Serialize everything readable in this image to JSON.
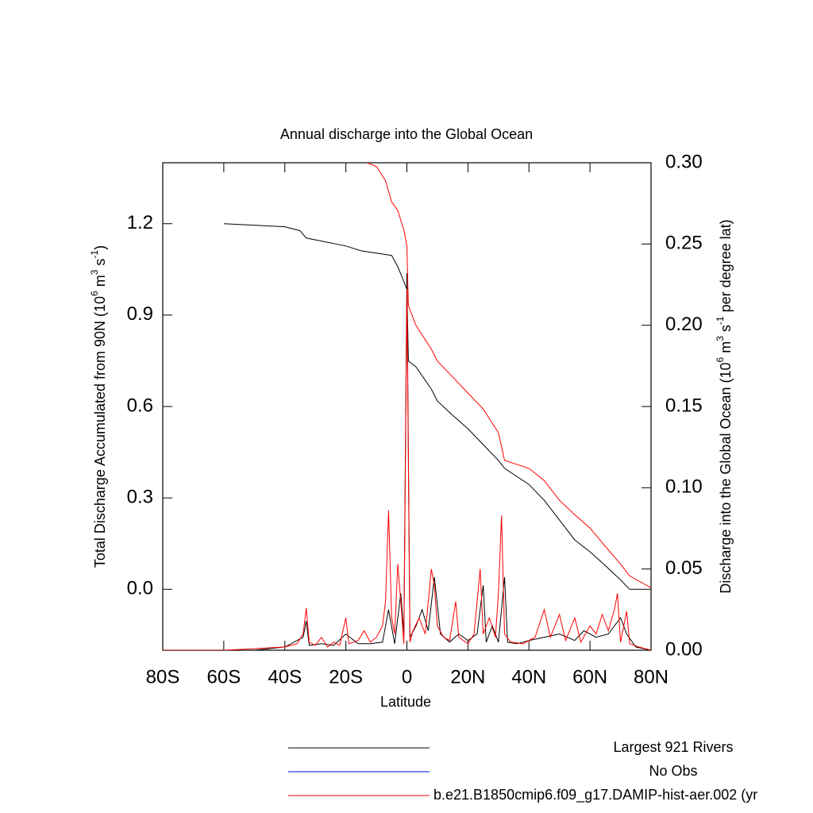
{
  "chart_data": {
    "type": "line",
    "title": "Annual discharge into the Global Ocean",
    "xlabel": "Latitude",
    "ylabel_parts": [
      "Total Discharge Accumulated from 90N (10",
      "6",
      " m",
      "3",
      " s",
      "-1",
      ")"
    ],
    "y2label_parts": [
      "Discharge into the Global Ocean (10",
      "6",
      " m",
      "3",
      " s",
      "-1",
      " per degree lat)"
    ],
    "xlim": [
      -80,
      80
    ],
    "xticks": [
      {
        "value": -80,
        "label": "80S"
      },
      {
        "value": -60,
        "label": "60S"
      },
      {
        "value": -40,
        "label": "40S"
      },
      {
        "value": -20,
        "label": "20S"
      },
      0,
      {
        "value": 20,
        "label": "20N"
      },
      {
        "value": 40,
        "label": "40N"
      },
      {
        "value": 60,
        "label": "60N"
      },
      {
        "value": 80,
        "label": "80N"
      }
    ],
    "ylim": [
      -0.2,
      1.4
    ],
    "yticks": [
      {
        "value": 0,
        "label": "0.0"
      },
      0.3,
      0.6,
      0.9,
      1.2
    ],
    "y2lim": [
      0,
      0.3
    ],
    "y2ticks": [
      {
        "value": 0,
        "label": "0.00"
      },
      {
        "value": 0.05,
        "label": "0.05"
      },
      {
        "value": 0.1,
        "label": "0.10"
      },
      {
        "value": 0.15,
        "label": "0.15"
      },
      {
        "value": 0.2,
        "label": "0.20"
      },
      {
        "value": 0.25,
        "label": "0.25"
      },
      {
        "value": 0.3,
        "label": "0.30"
      }
    ],
    "legend": [
      {
        "name": "Largest 921 Rivers",
        "color": "#000000"
      },
      {
        "name": "No Obs",
        "color": "#0000ff"
      },
      {
        "name": "b.e21.B1850cmip6.f09_g17.DAMIP-hist-aer.002 (yr",
        "color": "#ff0000"
      }
    ],
    "series": [
      {
        "color": "#000000",
        "axis": "y",
        "x": [
          -60,
          -40,
          -35,
          -33,
          -20,
          -15,
          -5,
          -3,
          -1,
          0,
          0.5,
          3,
          8,
          10,
          15,
          20,
          25,
          30,
          32,
          40,
          45,
          50,
          55,
          60,
          65,
          70,
          73,
          80
        ],
        "values": [
          1.2,
          1.19,
          1.177,
          1.153,
          1.127,
          1.111,
          1.096,
          1.059,
          1.01,
          0.984,
          0.749,
          0.73,
          0.657,
          0.618,
          0.571,
          0.527,
          0.475,
          0.423,
          0.397,
          0.344,
          0.292,
          0.227,
          0.162,
          0.123,
          0.078,
          0.031,
          0,
          0
        ]
      },
      {
        "color": "#ff0000",
        "axis": "y",
        "x": [
          -13,
          -10,
          -7,
          -5,
          -3,
          -1,
          0,
          0.5,
          3,
          8,
          10,
          15,
          20,
          25,
          28,
          30,
          32,
          40,
          45,
          50,
          55,
          60,
          65,
          70,
          73,
          80
        ],
        "values": [
          1.4,
          1.388,
          1.341,
          1.271,
          1.244,
          1.179,
          1.127,
          0.931,
          0.866,
          0.788,
          0.749,
          0.697,
          0.644,
          0.592,
          0.545,
          0.514,
          0.423,
          0.397,
          0.357,
          0.292,
          0.245,
          0.201,
          0.141,
          0.083,
          0.044,
          0.005
        ]
      },
      {
        "color": "#000000",
        "axis": "y2",
        "x": [
          -80,
          -50,
          -40,
          -34,
          -33,
          -32,
          -28,
          -24,
          -20,
          -16,
          -12,
          -8,
          -6,
          -4,
          -2,
          -1,
          0,
          1,
          3,
          5,
          7,
          9,
          11,
          14,
          17,
          20,
          23,
          25,
          26,
          28,
          30,
          32,
          33,
          36,
          40,
          45,
          50,
          55,
          58,
          62,
          66,
          70,
          72,
          75,
          80
        ],
        "values": [
          0,
          0,
          0.002,
          0.008,
          0.018,
          0.003,
          0.004,
          0.003,
          0.01,
          0.004,
          0.004,
          0.005,
          0.025,
          0.004,
          0.035,
          0.01,
          0.232,
          0.008,
          0.015,
          0.025,
          0.012,
          0.045,
          0.01,
          0.005,
          0.01,
          0.006,
          0.01,
          0.04,
          0.005,
          0.015,
          0.005,
          0.045,
          0.005,
          0.004,
          0.006,
          0.008,
          0.01,
          0.006,
          0.012,
          0.008,
          0.01,
          0.02,
          0.01,
          0.002,
          0
        ]
      },
      {
        "color": "#ff0000",
        "axis": "y2",
        "x": [
          -80,
          -60,
          -50,
          -40,
          -36,
          -34,
          -33,
          -32,
          -30,
          -28,
          -26,
          -24,
          -22,
          -20,
          -19,
          -16,
          -14,
          -12,
          -10,
          -8,
          -7,
          -6,
          -5,
          -4,
          -3,
          -2,
          -1,
          0,
          1,
          2,
          4,
          6,
          8,
          9,
          10,
          12,
          14,
          16,
          17,
          20,
          22,
          24,
          25,
          27,
          29,
          30,
          31,
          32,
          34,
          38,
          42,
          45,
          47,
          50,
          52,
          55,
          57,
          60,
          62,
          64,
          66,
          68,
          69,
          70,
          72,
          73,
          76,
          80
        ],
        "values": [
          0,
          0,
          0.001,
          0.002,
          0.004,
          0.01,
          0.026,
          0.005,
          0.003,
          0.008,
          0.002,
          0.005,
          0.003,
          0.02,
          0.004,
          0.006,
          0.012,
          0.005,
          0.008,
          0.015,
          0.03,
          0.086,
          0.02,
          0.01,
          0.053,
          0.03,
          0.004,
          0.222,
          0.005,
          0.012,
          0.02,
          0.01,
          0.05,
          0.04,
          0.015,
          0.008,
          0.006,
          0.03,
          0.008,
          0.004,
          0.01,
          0.05,
          0.01,
          0.02,
          0.008,
          0.035,
          0.083,
          0.01,
          0.005,
          0.004,
          0.008,
          0.025,
          0.008,
          0.022,
          0.006,
          0.02,
          0.005,
          0.015,
          0.01,
          0.022,
          0.012,
          0.025,
          0.035,
          0.005,
          0.024,
          0.004,
          0.002,
          0
        ]
      }
    ]
  }
}
